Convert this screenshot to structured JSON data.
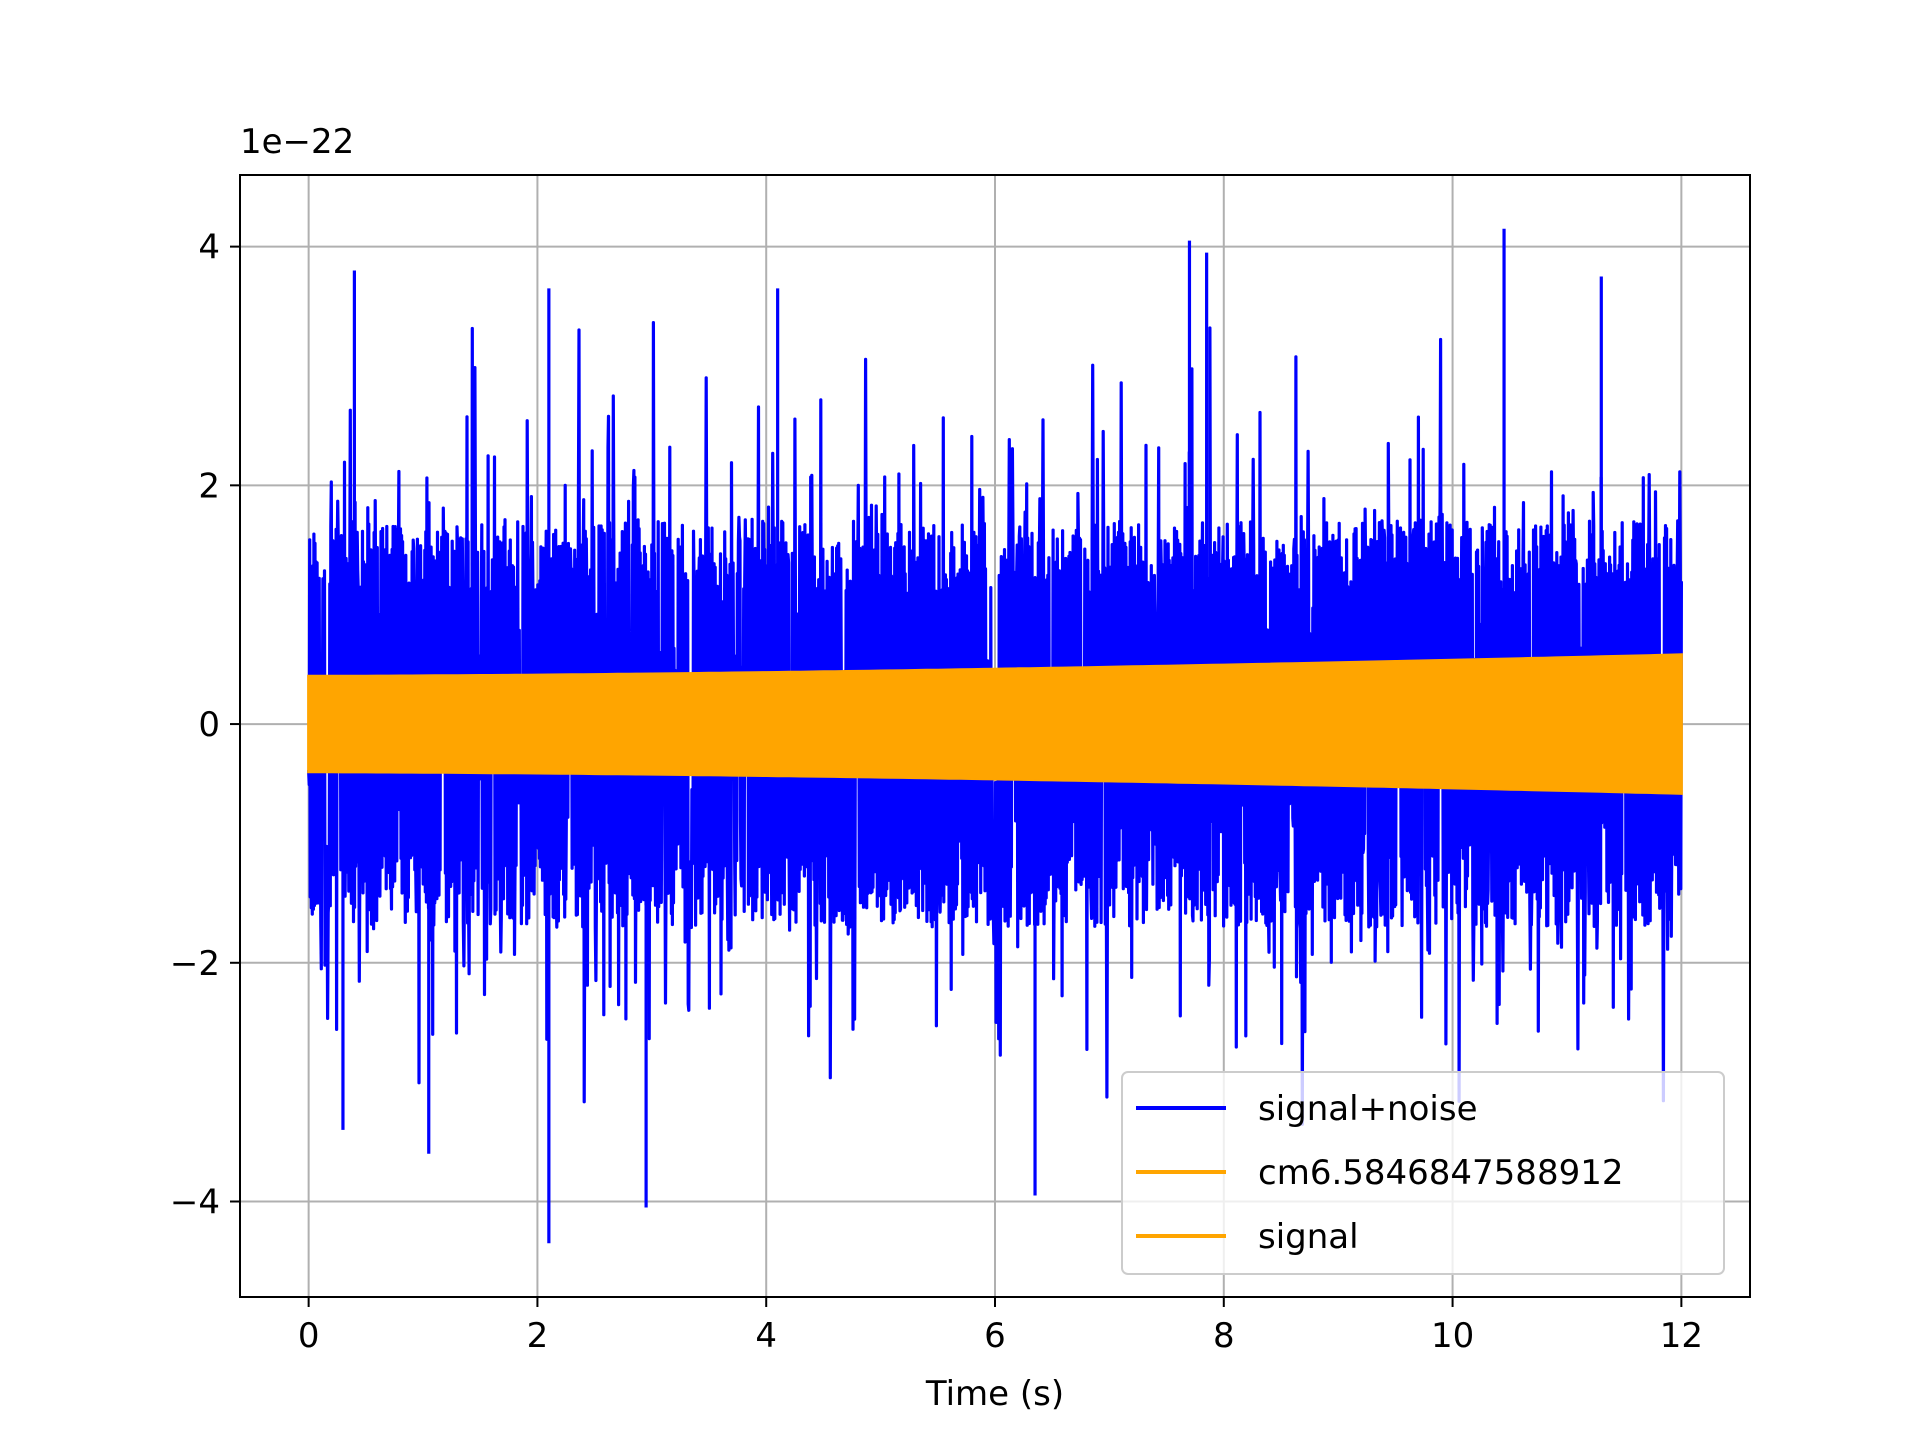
{
  "chart_data": {
    "type": "line",
    "title": "",
    "xlabel": "Time (s)",
    "ylabel": "",
    "y_offset_text": "1e−22",
    "y_scale_factor": 1e-22,
    "xlim": [
      -0.6,
      12.6
    ],
    "ylim": [
      -4.8,
      4.6
    ],
    "x_ticks": [
      0,
      2,
      4,
      6,
      8,
      10,
      12
    ],
    "x_tick_labels": [
      "0",
      "2",
      "4",
      "6",
      "8",
      "10",
      "12"
    ],
    "y_ticks": [
      -4,
      -2,
      0,
      2,
      4
    ],
    "y_tick_labels": [
      "−4",
      "−2",
      "0",
      "2",
      "4"
    ],
    "grid": true,
    "legend_position": "lower-right",
    "series": [
      {
        "name": "signal+noise",
        "color": "#0000ff",
        "x_range": [
          0,
          12
        ],
        "envelope": {
          "typical_abs": 2.0,
          "peaks": [
            {
              "x": 0.4,
              "y": 3.8
            },
            {
              "x": 2.1,
              "y": 3.65
            },
            {
              "x": 2.1,
              "y": -4.35
            },
            {
              "x": 2.95,
              "y": -4.05
            },
            {
              "x": 6.35,
              "y": -3.95
            },
            {
              "x": 7.7,
              "y": 4.05
            },
            {
              "x": 7.85,
              "y": 3.95
            },
            {
              "x": 10.45,
              "y": 4.15
            },
            {
              "x": 11.3,
              "y": 3.75
            },
            {
              "x": 1.05,
              "y": -3.6
            },
            {
              "x": 4.1,
              "y": 3.65
            },
            {
              "x": 0.3,
              "y": -3.4
            }
          ]
        }
      },
      {
        "name": "cm6.5846847588912",
        "color": "#ffa500",
        "x_range": [
          0,
          12
        ],
        "amplitude_start": 0.4,
        "amplitude_end": 0.58
      },
      {
        "name": "signal",
        "color": "#ffa500",
        "x_range": [
          0,
          12
        ],
        "amplitude_start": 0.4,
        "amplitude_end": 0.58
      }
    ]
  }
}
